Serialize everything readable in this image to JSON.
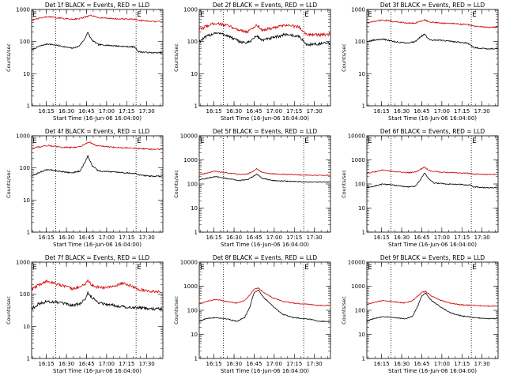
{
  "chart_data": [
    {
      "type": "line",
      "title": "Det 1f BLACK = Events, RED = LLD",
      "xlabel": "Start Time (16-Jun-06 16:04:00)",
      "ylabel": "Counts/sec",
      "yscale": "log",
      "ylim": [
        1,
        1000
      ],
      "yticks": [
        "1",
        "10",
        "100",
        "1000"
      ],
      "xlim": [
        0,
        98
      ],
      "xticks": [
        "16:15",
        "16:30",
        "16:45",
        "17:00",
        "17:15",
        "17:30"
      ],
      "xtick_values": [
        11,
        26,
        41,
        56,
        71,
        86
      ],
      "vlines": [
        18,
        78
      ],
      "markers": [
        "E",
        "E"
      ],
      "grid": false,
      "series": [
        {
          "color": "#000000",
          "x": [
            0,
            5,
            12,
            20,
            30,
            35,
            39,
            42,
            45,
            50,
            60,
            70,
            77,
            80,
            90,
            98
          ],
          "values": [
            55,
            70,
            85,
            75,
            62,
            70,
            110,
            190,
            110,
            80,
            75,
            70,
            68,
            48,
            45,
            45
          ]
        },
        {
          "color": "#d00000",
          "x": [
            0,
            5,
            12,
            20,
            30,
            36,
            40,
            44,
            50,
            60,
            70,
            77,
            80,
            90,
            98
          ],
          "values": [
            450,
            520,
            600,
            540,
            500,
            520,
            580,
            650,
            560,
            520,
            500,
            500,
            460,
            420,
            420
          ]
        }
      ]
    },
    {
      "type": "line",
      "title": "Det 2f BLACK = Events, RED = LLD",
      "xlabel": "Start Time (16-Jun-06 16:04:00)",
      "ylabel": "Counts/sec",
      "yscale": "log",
      "ylim": [
        1,
        1000
      ],
      "yticks": [
        "1",
        "10",
        "100",
        "1000"
      ],
      "xlim": [
        0,
        98
      ],
      "xticks": [
        "16:15",
        "16:30",
        "16:45",
        "17:00",
        "17:15",
        "17:30"
      ],
      "xtick_values": [
        11,
        26,
        41,
        56,
        71,
        86
      ],
      "vlines": [
        18,
        78
      ],
      "markers": [
        "E",
        "E"
      ],
      "grid": false,
      "series": [
        {
          "color": "#000000",
          "x": [
            0,
            5,
            12,
            20,
            30,
            36,
            40,
            43,
            47,
            55,
            65,
            75,
            80,
            90,
            98
          ],
          "values": [
            100,
            140,
            190,
            160,
            100,
            90,
            120,
            150,
            110,
            130,
            170,
            140,
            80,
            85,
            90
          ]
        },
        {
          "color": "#d00000",
          "x": [
            0,
            5,
            12,
            20,
            30,
            36,
            40,
            43,
            47,
            55,
            65,
            75,
            80,
            90,
            98
          ],
          "values": [
            230,
            300,
            380,
            320,
            230,
            200,
            260,
            330,
            230,
            260,
            330,
            280,
            170,
            160,
            170
          ]
        }
      ]
    },
    {
      "type": "line",
      "title": "Det 3f BLACK = Events, RED = LLD",
      "xlabel": "Start Time (16-Jun-06 16:04:00)",
      "ylabel": "Counts/sec",
      "yscale": "log",
      "ylim": [
        1,
        1000
      ],
      "yticks": [
        "1",
        "10",
        "100",
        "1000"
      ],
      "xlim": [
        0,
        98
      ],
      "xticks": [
        "16:15",
        "16:30",
        "16:45",
        "17:00",
        "17:15",
        "17:30"
      ],
      "xtick_values": [
        11,
        26,
        41,
        56,
        71,
        86
      ],
      "vlines": [
        18,
        78
      ],
      "markers": [
        "E",
        "E"
      ],
      "grid": false,
      "series": [
        {
          "color": "#000000",
          "x": [
            0,
            5,
            12,
            20,
            30,
            36,
            40,
            43,
            47,
            55,
            65,
            75,
            80,
            90,
            98
          ],
          "values": [
            100,
            110,
            120,
            100,
            90,
            100,
            140,
            170,
            110,
            110,
            100,
            90,
            65,
            60,
            60
          ]
        },
        {
          "color": "#d00000",
          "x": [
            0,
            5,
            12,
            20,
            30,
            36,
            40,
            43,
            47,
            55,
            65,
            75,
            80,
            90,
            98
          ],
          "values": [
            380,
            420,
            470,
            420,
            380,
            380,
            430,
            480,
            400,
            380,
            360,
            340,
            300,
            280,
            280
          ]
        }
      ]
    },
    {
      "type": "line",
      "title": "Det 4f BLACK = Events, RED = LLD",
      "xlabel": "Start Time (16-Jun-06 16:04:00)",
      "ylabel": "Counts/sec",
      "yscale": "log",
      "ylim": [
        1,
        1000
      ],
      "yticks": [
        "1",
        "10",
        "100",
        "1000"
      ],
      "xlim": [
        0,
        98
      ],
      "xticks": [
        "16:15",
        "16:30",
        "16:45",
        "17:00",
        "17:15",
        "17:30"
      ],
      "xtick_values": [
        11,
        26,
        41,
        56,
        71,
        86
      ],
      "vlines": [
        18,
        78
      ],
      "markers": [
        "E",
        "E"
      ],
      "grid": false,
      "series": [
        {
          "color": "#000000",
          "x": [
            0,
            5,
            12,
            20,
            30,
            36,
            40,
            42,
            45,
            50,
            60,
            70,
            77,
            80,
            90,
            98
          ],
          "values": [
            55,
            70,
            90,
            80,
            70,
            80,
            150,
            240,
            120,
            80,
            75,
            70,
            68,
            60,
            55,
            55
          ]
        },
        {
          "color": "#d00000",
          "x": [
            0,
            5,
            12,
            20,
            30,
            36,
            40,
            43,
            48,
            55,
            65,
            75,
            80,
            90,
            98
          ],
          "values": [
            400,
            450,
            500,
            450,
            430,
            460,
            560,
            640,
            500,
            460,
            430,
            420,
            400,
            380,
            380
          ]
        }
      ]
    },
    {
      "type": "line",
      "title": "Det 5f BLACK = Events, RED = LLD",
      "xlabel": "Start Time (16-Jun-06 16:04:00)",
      "ylabel": "Counts/sec",
      "yscale": "log",
      "ylim": [
        1,
        10000
      ],
      "yticks": [
        "1",
        "10",
        "100",
        "1000",
        "10000"
      ],
      "xlim": [
        0,
        98
      ],
      "xticks": [
        "16:15",
        "16:30",
        "16:45",
        "17:00",
        "17:15",
        "17:30"
      ],
      "xtick_values": [
        11,
        26,
        41,
        56,
        71,
        86
      ],
      "vlines": [
        18,
        78
      ],
      "markers": [
        "E",
        "E"
      ],
      "grid": false,
      "series": [
        {
          "color": "#000000",
          "x": [
            0,
            5,
            12,
            20,
            30,
            36,
            40,
            43,
            47,
            55,
            65,
            75,
            80,
            90,
            98
          ],
          "values": [
            150,
            170,
            200,
            170,
            140,
            150,
            200,
            260,
            170,
            140,
            130,
            125,
            120,
            120,
            120
          ]
        },
        {
          "color": "#d00000",
          "x": [
            0,
            5,
            12,
            20,
            30,
            36,
            40,
            43,
            47,
            55,
            65,
            75,
            80,
            90,
            98
          ],
          "values": [
            250,
            280,
            340,
            290,
            250,
            260,
            330,
            430,
            300,
            260,
            250,
            240,
            230,
            230,
            230
          ]
        }
      ]
    },
    {
      "type": "line",
      "title": "Det 6f BLACK = Events, RED = LLD",
      "xlabel": "Start Time (16-Jun-06 16:04:00)",
      "ylabel": "Counts/sec",
      "yscale": "log",
      "ylim": [
        1,
        10000
      ],
      "yticks": [
        "1",
        "10",
        "100",
        "1000",
        "10000"
      ],
      "xlim": [
        0,
        98
      ],
      "xticks": [
        "16:15",
        "16:30",
        "16:45",
        "17:00",
        "17:15",
        "17:30"
      ],
      "xtick_values": [
        11,
        26,
        41,
        56,
        71,
        86
      ],
      "vlines": [
        18,
        78
      ],
      "markers": [
        "E",
        "E"
      ],
      "grid": false,
      "series": [
        {
          "color": "#000000",
          "x": [
            0,
            5,
            12,
            20,
            30,
            36,
            40,
            43,
            46,
            50,
            60,
            70,
            77,
            80,
            90,
            98
          ],
          "values": [
            70,
            80,
            100,
            90,
            75,
            80,
            150,
            280,
            170,
            110,
            100,
            95,
            90,
            75,
            70,
            70
          ]
        },
        {
          "color": "#d00000",
          "x": [
            0,
            5,
            12,
            20,
            30,
            36,
            40,
            43,
            47,
            55,
            65,
            75,
            80,
            90,
            98
          ],
          "values": [
            280,
            310,
            380,
            330,
            290,
            310,
            400,
            500,
            350,
            310,
            290,
            280,
            260,
            250,
            250
          ]
        }
      ]
    },
    {
      "type": "line",
      "title": "Det 7f BLACK = Events, RED = LLD",
      "xlabel": "Start Time (16-Jun-06 16:04:00)",
      "ylabel": "Counts/sec",
      "yscale": "log",
      "ylim": [
        1,
        1000
      ],
      "yticks": [
        "1",
        "10",
        "100",
        "1000"
      ],
      "xlim": [
        0,
        98
      ],
      "xticks": [
        "16:15",
        "16:30",
        "16:45",
        "17:00",
        "17:15",
        "17:30"
      ],
      "xtick_values": [
        11,
        26,
        41,
        56,
        71,
        86
      ],
      "vlines": [
        18,
        78
      ],
      "markers": [
        "E",
        "E"
      ],
      "grid": false,
      "series": [
        {
          "color": "#000000",
          "x": [
            0,
            5,
            12,
            20,
            30,
            36,
            40,
            42,
            45,
            50,
            55,
            62,
            70,
            80,
            90,
            98
          ],
          "values": [
            35,
            50,
            60,
            55,
            45,
            50,
            70,
            110,
            80,
            55,
            50,
            45,
            40,
            38,
            35,
            35
          ]
        },
        {
          "color": "#d00000",
          "x": [
            0,
            5,
            12,
            20,
            30,
            36,
            40,
            42,
            46,
            52,
            60,
            68,
            75,
            80,
            90,
            98
          ],
          "values": [
            140,
            190,
            260,
            200,
            150,
            170,
            210,
            260,
            180,
            160,
            170,
            220,
            180,
            140,
            120,
            120
          ]
        }
      ]
    },
    {
      "type": "line",
      "title": "Det 8f BLACK = Events, RED = LLD",
      "xlabel": "Start Time (16-Jun-06 16:04:00)",
      "ylabel": "Counts/sec",
      "yscale": "log",
      "ylim": [
        1,
        10000
      ],
      "yticks": [
        "1",
        "10",
        "100",
        "1000",
        "10000"
      ],
      "xlim": [
        0,
        98
      ],
      "xticks": [
        "16:15",
        "16:30",
        "16:45",
        "17:00",
        "17:15",
        "17:30"
      ],
      "xtick_values": [
        11,
        26,
        41,
        56,
        71,
        86
      ],
      "vlines": [
        18,
        78
      ],
      "markers": [
        "E",
        "E"
      ],
      "grid": false,
      "series": [
        {
          "color": "#000000",
          "x": [
            0,
            5,
            12,
            20,
            28,
            34,
            38,
            41,
            44,
            48,
            55,
            62,
            70,
            80,
            90,
            98
          ],
          "values": [
            35,
            45,
            50,
            45,
            35,
            50,
            150,
            550,
            700,
            350,
            150,
            70,
            50,
            45,
            35,
            35
          ]
        },
        {
          "color": "#d00000",
          "x": [
            0,
            5,
            12,
            20,
            28,
            34,
            38,
            41,
            44,
            48,
            55,
            62,
            70,
            80,
            90,
            98
          ],
          "values": [
            180,
            230,
            280,
            240,
            200,
            260,
            450,
            750,
            850,
            550,
            330,
            240,
            200,
            180,
            160,
            160
          ]
        }
      ]
    },
    {
      "type": "line",
      "title": "Det 9f BLACK = Events, RED = LLD",
      "xlabel": "Start Time (16-Jun-06 16:04:00)",
      "ylabel": "Counts/sec",
      "yscale": "log",
      "ylim": [
        1,
        10000
      ],
      "yticks": [
        "1",
        "10",
        "100",
        "1000",
        "10000"
      ],
      "xlim": [
        0,
        98
      ],
      "xticks": [
        "16:15",
        "16:30",
        "16:45",
        "17:00",
        "17:15",
        "17:30"
      ],
      "xtick_values": [
        11,
        26,
        41,
        56,
        71,
        86
      ],
      "vlines": [
        18,
        78
      ],
      "markers": [
        "E",
        "E"
      ],
      "grid": false,
      "series": [
        {
          "color": "#000000",
          "x": [
            0,
            5,
            12,
            20,
            28,
            34,
            38,
            41,
            44,
            48,
            55,
            62,
            70,
            80,
            90,
            98
          ],
          "values": [
            35,
            45,
            55,
            50,
            45,
            55,
            150,
            400,
            500,
            260,
            140,
            80,
            60,
            50,
            45,
            45
          ]
        },
        {
          "color": "#d00000",
          "x": [
            0,
            5,
            12,
            20,
            28,
            34,
            38,
            41,
            44,
            48,
            55,
            62,
            70,
            80,
            90,
            98
          ],
          "values": [
            170,
            210,
            260,
            230,
            200,
            250,
            380,
            560,
            600,
            400,
            260,
            200,
            170,
            160,
            150,
            150
          ]
        }
      ]
    }
  ]
}
